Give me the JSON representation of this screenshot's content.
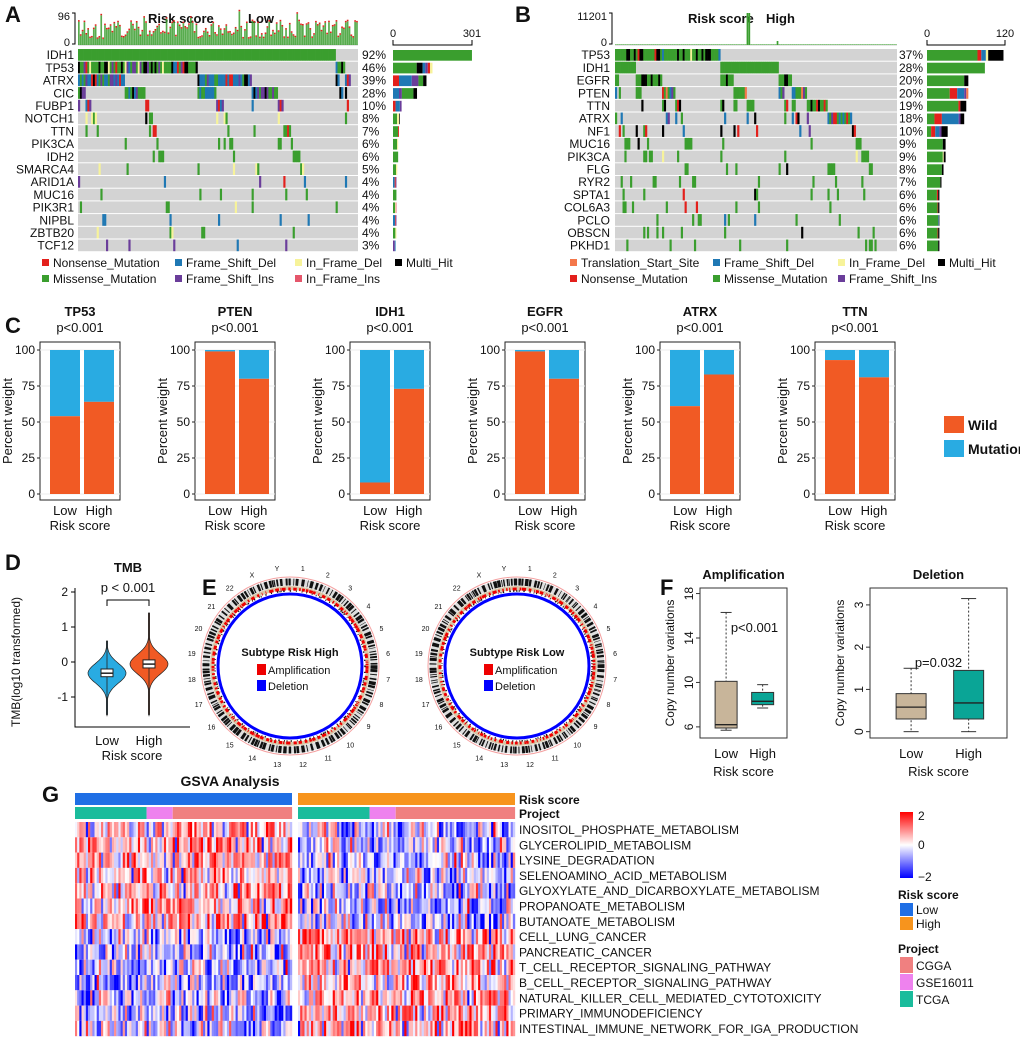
{
  "colors": {
    "Nonsense_Mutation": "#e3201c",
    "Missense_Mutation": "#3a9e2e",
    "Frame_Shift_Del": "#1f78b4",
    "Frame_Shift_Ins": "#6a3d9a",
    "In_Frame_Del": "#f7f39a",
    "In_Frame_Ins": "#e5566b",
    "Multi_Hit": "#000000",
    "Translation_Start_Site": "#f4774a",
    "background": "#d3d3d3",
    "wild": "#f15a24",
    "mutation": "#29abe2",
    "low_violin": "#29abe2",
    "high_violin": "#f15a24",
    "box_low": "#c8b59a",
    "box_high": "#0aa596",
    "risk_low": "#1f6fe5",
    "risk_high": "#f7941d",
    "CGGA": "#f08080",
    "GSE16011": "#ee82ee",
    "TCGA": "#1abc9c"
  },
  "oncoplots": [
    {
      "panel_label": "A",
      "title": "Risk score",
      "group": "Low",
      "tmb_axis": [
        "96",
        "0"
      ],
      "bar_axis": [
        "0",
        "301"
      ],
      "bar_max": 301,
      "samples": 327,
      "genes": [
        {
          "name": "IDH1",
          "pct": "92%",
          "mix": {
            "Missense_Mutation": 1
          }
        },
        {
          "name": "TP53",
          "pct": "46%",
          "mix": {
            "Missense_Mutation": 0.6,
            "Multi_Hit": 0.15,
            "Frame_Shift_Del": 0.07,
            "Frame_Shift_Ins": 0.06,
            "Nonsense_Mutation": 0.06,
            "In_Frame_Del": 0.06
          }
        },
        {
          "name": "ATRX",
          "pct": "39%",
          "mix": {
            "Nonsense_Mutation": 0.18,
            "Frame_Shift_Del": 0.38,
            "Frame_Shift_Ins": 0.2,
            "Missense_Mutation": 0.14,
            "Multi_Hit": 0.1
          }
        },
        {
          "name": "CIC",
          "pct": "28%",
          "mix": {
            "Frame_Shift_Del": 0.25,
            "Frame_Shift_Ins": 0.12,
            "Missense_Mutation": 0.48,
            "Multi_Hit": 0.15
          }
        },
        {
          "name": "FUBP1",
          "pct": "10%",
          "mix": {
            "Nonsense_Mutation": 0.3,
            "Frame_Shift_Del": 0.5,
            "Frame_Shift_Ins": 0.2
          }
        },
        {
          "name": "NOTCH1",
          "pct": "8%",
          "mix": {
            "Missense_Mutation": 0.6,
            "In_Frame_Del": 0.3,
            "Multi_Hit": 0.1
          }
        },
        {
          "name": "TTN",
          "pct": "7%",
          "mix": {
            "Missense_Mutation": 0.85,
            "Nonsense_Mutation": 0.15
          }
        },
        {
          "name": "PIK3CA",
          "pct": "6%",
          "mix": {
            "Missense_Mutation": 0.8,
            "In_Frame_Del": 0.2
          }
        },
        {
          "name": "IDH2",
          "pct": "6%",
          "mix": {
            "Missense_Mutation": 1
          }
        },
        {
          "name": "SMARCA4",
          "pct": "5%",
          "mix": {
            "Missense_Mutation": 0.7,
            "In_Frame_Del": 0.3
          }
        },
        {
          "name": "ARID1A",
          "pct": "4%",
          "mix": {
            "Frame_Shift_Del": 0.5,
            "Nonsense_Mutation": 0.3,
            "Frame_Shift_Ins": 0.2
          }
        },
        {
          "name": "MUC16",
          "pct": "4%",
          "mix": {
            "Missense_Mutation": 1
          }
        },
        {
          "name": "PIK3R1",
          "pct": "4%",
          "mix": {
            "Missense_Mutation": 0.6,
            "In_Frame_Del": 0.2,
            "In_Frame_Ins": 0.2
          }
        },
        {
          "name": "NIPBL",
          "pct": "4%",
          "mix": {
            "Frame_Shift_Del": 0.6,
            "Nonsense_Mutation": 0.2,
            "Frame_Shift_Ins": 0.2
          }
        },
        {
          "name": "ZBTB20",
          "pct": "4%",
          "mix": {
            "Missense_Mutation": 0.7,
            "In_Frame_Del": 0.3
          }
        },
        {
          "name": "TCF12",
          "pct": "3%",
          "mix": {
            "Frame_Shift_Ins": 0.7,
            "Frame_Shift_Del": 0.3
          }
        }
      ],
      "legend": [
        [
          "Nonsense_Mutation",
          "Frame_Shift_Del",
          "In_Frame_Del",
          "Multi_Hit"
        ],
        [
          "Missense_Mutation",
          "Frame_Shift_Ins",
          "In_Frame_Ins"
        ]
      ]
    },
    {
      "panel_label": "B",
      "title": "Risk score",
      "group": "High",
      "tmb_axis": [
        "11201",
        "0"
      ],
      "bar_axis": [
        "0",
        "120"
      ],
      "bar_max": 120,
      "samples": 318,
      "genes": [
        {
          "name": "TP53",
          "pct": "37%",
          "mix": {
            "Missense_Mutation": 0.66,
            "Nonsense_Mutation": 0.05,
            "Frame_Shift_Del": 0.06,
            "In_Frame_Del": 0.03,
            "Multi_Hit": 0.2
          }
        },
        {
          "name": "IDH1",
          "pct": "28%",
          "mix": {
            "Missense_Mutation": 1
          }
        },
        {
          "name": "EGFR",
          "pct": "20%",
          "mix": {
            "Missense_Mutation": 0.9,
            "Multi_Hit": 0.1
          }
        },
        {
          "name": "PTEN",
          "pct": "20%",
          "mix": {
            "Missense_Mutation": 0.55,
            "Nonsense_Mutation": 0.18,
            "Frame_Shift_Del": 0.17,
            "Frame_Shift_Ins": 0.05,
            "Translation_Start_Site": 0.05
          }
        },
        {
          "name": "TTN",
          "pct": "19%",
          "mix": {
            "Missense_Mutation": 0.8,
            "Nonsense_Mutation": 0.05,
            "Multi_Hit": 0.15
          }
        },
        {
          "name": "ATRX",
          "pct": "18%",
          "mix": {
            "Missense_Mutation": 0.2,
            "Nonsense_Mutation": 0.2,
            "Frame_Shift_Del": 0.45,
            "Frame_Shift_Ins": 0.05,
            "Multi_Hit": 0.1
          }
        },
        {
          "name": "NF1",
          "pct": "10%",
          "mix": {
            "Missense_Mutation": 0.2,
            "Nonsense_Mutation": 0.2,
            "Frame_Shift_Del": 0.2,
            "Frame_Shift_Ins": 0.1,
            "Multi_Hit": 0.3
          }
        },
        {
          "name": "MUC16",
          "pct": "9%",
          "mix": {
            "Missense_Mutation": 0.85,
            "Multi_Hit": 0.15
          }
        },
        {
          "name": "PIK3CA",
          "pct": "9%",
          "mix": {
            "Missense_Mutation": 0.85,
            "In_Frame_Del": 0.05,
            "Multi_Hit": 0.1
          }
        },
        {
          "name": "FLG",
          "pct": "8%",
          "mix": {
            "Missense_Mutation": 0.9,
            "Multi_Hit": 0.1
          }
        },
        {
          "name": "RYR2",
          "pct": "7%",
          "mix": {
            "Missense_Mutation": 0.92,
            "Multi_Hit": 0.08
          }
        },
        {
          "name": "SPTA1",
          "pct": "6%",
          "mix": {
            "Missense_Mutation": 0.8,
            "Nonsense_Mutation": 0.1,
            "Multi_Hit": 0.1
          }
        },
        {
          "name": "COL6A3",
          "pct": "6%",
          "mix": {
            "Missense_Mutation": 0.85,
            "Nonsense_Mutation": 0.05,
            "Multi_Hit": 0.1
          }
        },
        {
          "name": "PCLO",
          "pct": "6%",
          "mix": {
            "Missense_Mutation": 0.9,
            "Frame_Shift_Del": 0.05,
            "Multi_Hit": 0.05
          }
        },
        {
          "name": "OBSCN",
          "pct": "6%",
          "mix": {
            "Missense_Mutation": 0.85,
            "Nonsense_Mutation": 0.05,
            "Multi_Hit": 0.1
          }
        },
        {
          "name": "PKHD1",
          "pct": "6%",
          "mix": {
            "Missense_Mutation": 0.9,
            "Multi_Hit": 0.1
          }
        }
      ],
      "legend": [
        [
          "Translation_Start_Site",
          "Frame_Shift_Del",
          "In_Frame_Del",
          "Multi_Hit"
        ],
        [
          "Nonsense_Mutation",
          "Missense_Mutation",
          "Frame_Shift_Ins"
        ]
      ]
    }
  ],
  "chart_data": [
    {
      "panel_label": "C",
      "type": "bar",
      "stacked": true,
      "ylabel": "Percent weight",
      "xlabel": "Risk score",
      "categories": [
        "Low",
        "High"
      ],
      "yticks": [
        "0",
        "25",
        "50",
        "75",
        "100"
      ],
      "legend": [
        "Wild",
        "Mutation"
      ],
      "panels": [
        {
          "gene": "TP53",
          "p": "p<0.001",
          "wild": [
            54,
            64
          ]
        },
        {
          "gene": "PTEN",
          "p": "p<0.001",
          "wild": [
            99,
            80
          ]
        },
        {
          "gene": "IDH1",
          "p": "p<0.001",
          "wild": [
            8,
            73
          ]
        },
        {
          "gene": "EGFR",
          "p": "p<0.001",
          "wild": [
            99,
            80
          ]
        },
        {
          "gene": "ATRX",
          "p": "p<0.001",
          "wild": [
            61,
            83
          ]
        },
        {
          "gene": "TTN",
          "p": "p<0.001",
          "wild": [
            93,
            81
          ]
        }
      ]
    },
    {
      "panel_label": "D",
      "type": "violin",
      "title": "TMB",
      "p": "p < 0.001",
      "ylabel": "TMB(log10 transformed)",
      "xlabel": "Risk score",
      "categories": [
        "Low",
        "High"
      ],
      "yticks": [
        "2",
        "1",
        "0",
        "-1"
      ],
      "ylim": [
        -1.6,
        2.1
      ],
      "median": [
        -0.32,
        -0.06
      ],
      "q1": [
        -0.42,
        -0.17
      ],
      "q3": [
        -0.2,
        0.06
      ],
      "min": [
        -1.55,
        -1.55
      ],
      "max": [
        0.6,
        1.4
      ]
    },
    {
      "panel_label": "E",
      "type": "circos",
      "plots": [
        {
          "title": "Subtype Risk High"
        },
        {
          "title": "Subtype Risk Low"
        }
      ],
      "legend": [
        "Amplification",
        "Deletion"
      ],
      "chromosomes": [
        "1",
        "2",
        "3",
        "4",
        "5",
        "6",
        "7",
        "8",
        "9",
        "10",
        "11",
        "12",
        "13",
        "14",
        "15",
        "16",
        "17",
        "18",
        "19",
        "20",
        "21",
        "22",
        "X",
        "Y"
      ]
    },
    {
      "panel_label": "F",
      "type": "box",
      "ylabel": "Copy number variations",
      "xlabel": "Risk score",
      "categories": [
        "Low",
        "High"
      ],
      "plots": [
        {
          "title": "Amplification",
          "p": "p<0.001",
          "yticks": [
            "6",
            "10",
            "14",
            "18"
          ],
          "ylim": [
            5,
            18.5
          ],
          "min": [
            5.7,
            7.7
          ],
          "q1": [
            5.9,
            8.0
          ],
          "median": [
            6.2,
            8.3
          ],
          "q3": [
            10.1,
            9.1
          ],
          "max": [
            16.3,
            9.8
          ]
        },
        {
          "title": "Deletion",
          "p": "p=0.032",
          "yticks": [
            "0",
            "1",
            "2",
            "3"
          ],
          "ylim": [
            -0.15,
            3.4
          ],
          "min": [
            0,
            0
          ],
          "q1": [
            0.3,
            0.3
          ],
          "median": [
            0.58,
            0.68
          ],
          "q3": [
            0.9,
            1.45
          ],
          "max": [
            1.5,
            3.15
          ]
        }
      ]
    },
    {
      "panel_label": "G",
      "type": "heatmap",
      "title": "GSVA Analysis",
      "annotation_rows": [
        "Risk score",
        "Project"
      ],
      "rows": [
        "INOSITOL_PHOSPHATE_METABOLISM",
        "GLYCEROLIPID_METABOLISM",
        "LYSINE_DEGRADATION",
        "SELENOAMINO_ACID_METABOLISM",
        "GLYOXYLATE_AND_DICARBOXYLATE_METABOLISM",
        "PROPANOATE_METABOLISM",
        "BUTANOATE_METABOLISM",
        "CELL_LUNG_CANCER",
        "PANCREATIC_CANCER",
        "T_CELL_RECEPTOR_SIGNALING_PATHWAY",
        "B_CELL_RECEPTOR_SIGNALING_PATHWAY",
        "NATURAL_KILLER_CELL_MEDIATED_CYTOTOXICITY",
        "PRIMARY_IMMUNODEFICIENCY",
        "INTESTINAL_IMMUNE_NETWORK_FOR_IGA_PRODUCTION"
      ],
      "row_trend_low_group": [
        "up",
        "up",
        "up",
        "up",
        "up",
        "up",
        "up",
        "down",
        "down",
        "down",
        "down",
        "down",
        "down",
        "down"
      ],
      "scale_ticks": [
        "2",
        "0",
        "−2"
      ],
      "risk_legend": {
        "title": "Risk score",
        "items": [
          "Low",
          "High"
        ]
      },
      "project_legend": {
        "title": "Project",
        "items": [
          "CGGA",
          "GSE16011",
          "TCGA"
        ]
      },
      "project_order": [
        "TCGA",
        "GSE16011",
        "CGGA"
      ],
      "project_share": [
        0.33,
        0.12,
        0.55
      ]
    }
  ]
}
